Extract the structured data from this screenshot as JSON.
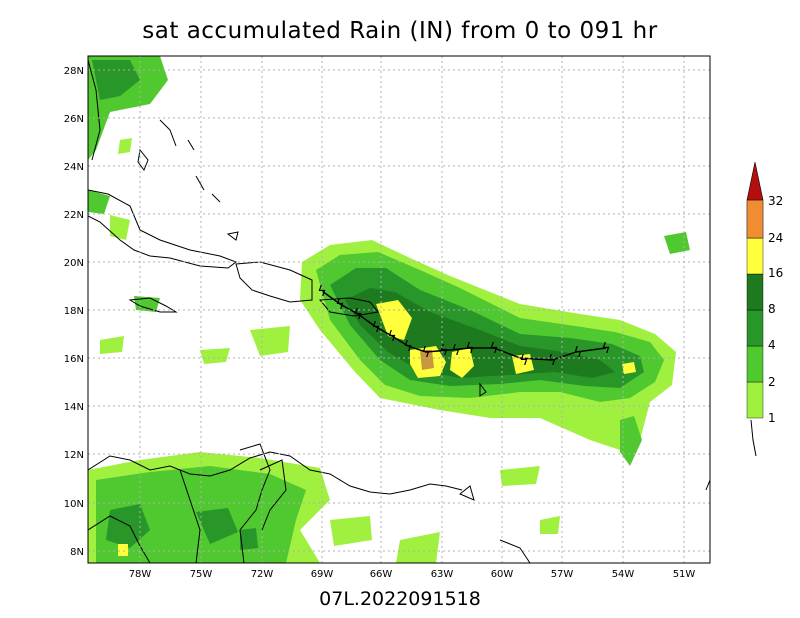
{
  "title": "sat accumulated Rain (IN) from 0 to 091 hr",
  "footer": "07L.2022091518",
  "map": {
    "lat_labels": [
      "28N",
      "26N",
      "24N",
      "22N",
      "20N",
      "18N",
      "16N",
      "14N",
      "12N",
      "10N",
      "8N"
    ],
    "lon_labels": [
      "78W",
      "75W",
      "72W",
      "69W",
      "66W",
      "63W",
      "60W",
      "57W",
      "54W",
      "51W"
    ],
    "storm_symbol": "hurricane-symbol"
  },
  "colorbar": {
    "labels": [
      "1",
      "2",
      "4",
      "8",
      "16",
      "24",
      "32"
    ],
    "colors": [
      "#a0f040",
      "#50c830",
      "#289628",
      "#1e7a1e",
      "#ffff3c",
      "#c8963c",
      "#f08c32",
      "#b40f0f"
    ]
  },
  "colors": {
    "grid": "#b0b0b0",
    "coast": "#000000",
    "track": "#000000"
  }
}
